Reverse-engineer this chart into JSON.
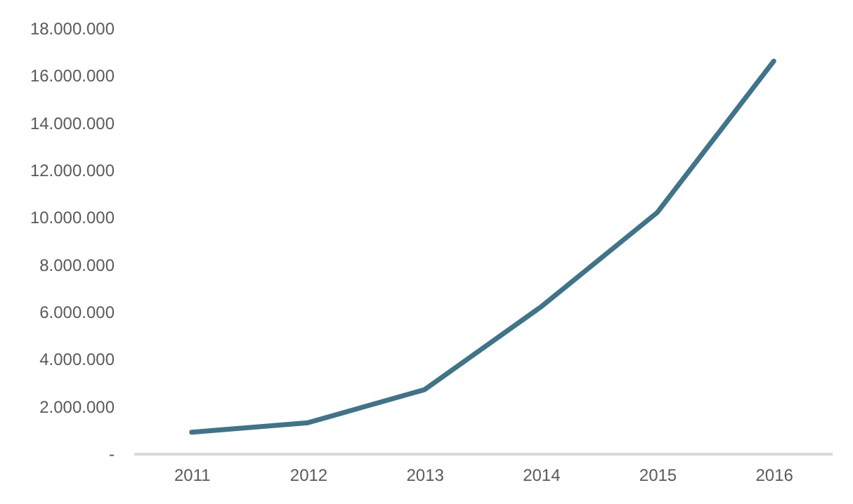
{
  "chart_data": {
    "type": "line",
    "categories": [
      "2011",
      "2012",
      "2013",
      "2014",
      "2015",
      "2016"
    ],
    "series": [
      {
        "color": "#3f7489",
        "values": [
          900000,
          1300000,
          2700000,
          6200000,
          10200000,
          16600000
        ]
      }
    ],
    "ylim": [
      0,
      18000000
    ],
    "yticks": [
      {
        "value": 0,
        "label": "-"
      },
      {
        "value": 2000000,
        "label": "2.000.000"
      },
      {
        "value": 4000000,
        "label": "4.000.000"
      },
      {
        "value": 6000000,
        "label": "6.000.000"
      },
      {
        "value": 8000000,
        "label": "8.000.000"
      },
      {
        "value": 10000000,
        "label": "10.000.000"
      },
      {
        "value": 12000000,
        "label": "12.000.000"
      },
      {
        "value": 14000000,
        "label": "14.000.000"
      },
      {
        "value": 16000000,
        "label": "16.000.000"
      },
      {
        "value": 18000000,
        "label": "18.000.000"
      }
    ],
    "grid": false,
    "marker": "none",
    "line_style": "solid"
  }
}
